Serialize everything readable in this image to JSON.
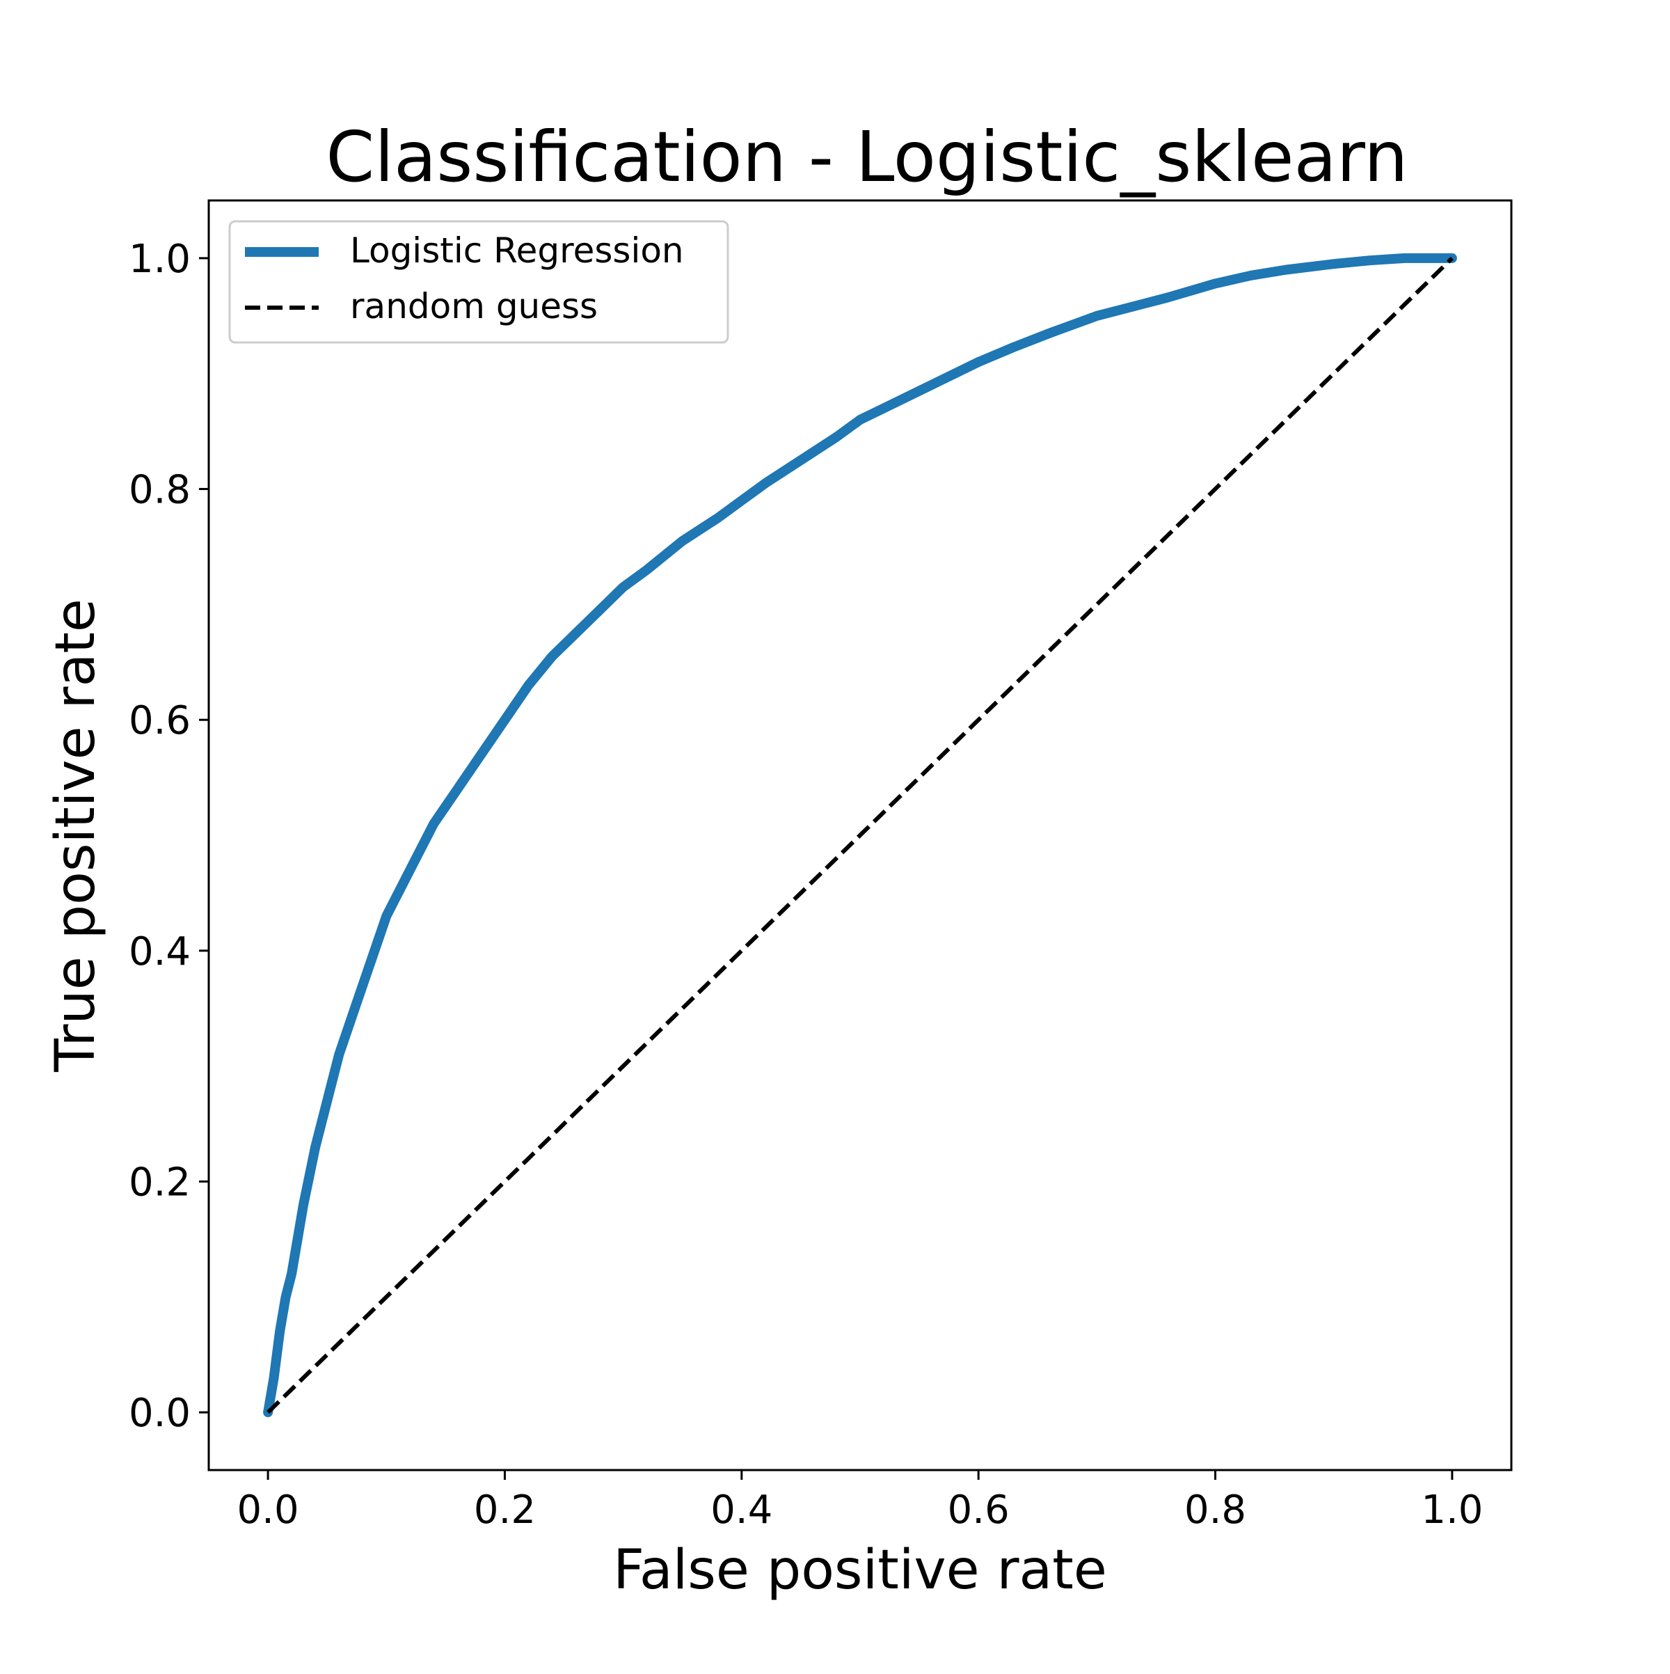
{
  "chart_data": {
    "type": "line",
    "title": "Classification - Logistic_sklearn",
    "xlabel": "False positive rate",
    "ylabel": "True positive rate",
    "xlim": [
      -0.05,
      1.05
    ],
    "ylim": [
      -0.05,
      1.05
    ],
    "xticks": [
      0.0,
      0.2,
      0.4,
      0.6,
      0.8,
      1.0
    ],
    "yticks": [
      0.0,
      0.2,
      0.4,
      0.6,
      0.8,
      1.0
    ],
    "xtick_labels": [
      "0.0",
      "0.2",
      "0.4",
      "0.6",
      "0.8",
      "1.0"
    ],
    "ytick_labels": [
      "0.0",
      "0.2",
      "0.4",
      "0.6",
      "0.8",
      "1.0"
    ],
    "grid": false,
    "legend_position": "top-left",
    "series": [
      {
        "name": "Logistic Regression",
        "color": "#1f77b4",
        "style": "solid-thick",
        "x": [
          0.0,
          0.005,
          0.01,
          0.015,
          0.02,
          0.03,
          0.04,
          0.05,
          0.06,
          0.07,
          0.08,
          0.09,
          0.1,
          0.12,
          0.14,
          0.16,
          0.18,
          0.2,
          0.22,
          0.24,
          0.26,
          0.28,
          0.3,
          0.32,
          0.35,
          0.38,
          0.4,
          0.42,
          0.45,
          0.48,
          0.5,
          0.53,
          0.56,
          0.6,
          0.63,
          0.66,
          0.7,
          0.73,
          0.76,
          0.8,
          0.83,
          0.86,
          0.9,
          0.93,
          0.96,
          1.0
        ],
        "y": [
          0.0,
          0.03,
          0.07,
          0.1,
          0.12,
          0.18,
          0.23,
          0.27,
          0.31,
          0.34,
          0.37,
          0.4,
          0.43,
          0.47,
          0.51,
          0.54,
          0.57,
          0.6,
          0.63,
          0.655,
          0.675,
          0.695,
          0.715,
          0.73,
          0.755,
          0.775,
          0.79,
          0.805,
          0.825,
          0.845,
          0.86,
          0.875,
          0.89,
          0.91,
          0.923,
          0.935,
          0.95,
          0.958,
          0.966,
          0.978,
          0.985,
          0.99,
          0.995,
          0.998,
          1.0,
          1.0
        ]
      },
      {
        "name": "random guess",
        "color": "#000000",
        "style": "dashed",
        "x": [
          0.0,
          1.0
        ],
        "y": [
          0.0,
          1.0
        ]
      }
    ]
  }
}
